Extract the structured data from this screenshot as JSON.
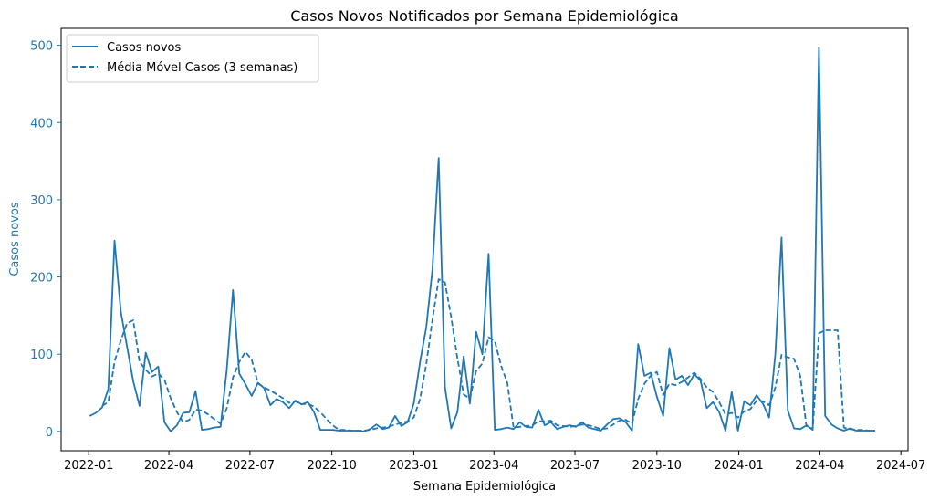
{
  "chart_data": {
    "type": "line",
    "title": "Casos Novos Notificados por Semana Epidemiológica",
    "xlabel": "Semana Epidemiológica",
    "ylabel": "Casos novos",
    "ylim": [
      -25,
      522
    ],
    "xlim": [
      "2021-12-01",
      "2024-07-09"
    ],
    "x_tick_labels": [
      "2022-01",
      "2022-04",
      "2022-07",
      "2022-10",
      "2023-01",
      "2023-04",
      "2023-07",
      "2023-10",
      "2024-01",
      "2024-04",
      "2024-07"
    ],
    "y_tick_labels": [
      "0",
      "100",
      "200",
      "300",
      "400",
      "500"
    ],
    "y_ticks": [
      0,
      100,
      200,
      300,
      400,
      500
    ],
    "y_axis_color": "#1f77b4",
    "legend_position": "top-left",
    "grid": false,
    "series": [
      {
        "name": "Casos novos",
        "style": "solid",
        "color": "#1f77b4",
        "points": [
          [
            "2022-01-02",
            20
          ],
          [
            "2022-01-09",
            24
          ],
          [
            "2022-01-16",
            31
          ],
          [
            "2022-01-23",
            55
          ],
          [
            "2022-01-30",
            247
          ],
          [
            "2022-02-06",
            155
          ],
          [
            "2022-02-13",
            110
          ],
          [
            "2022-02-20",
            65
          ],
          [
            "2022-02-27",
            33
          ],
          [
            "2022-03-06",
            102
          ],
          [
            "2022-03-13",
            77
          ],
          [
            "2022-03-20",
            84
          ],
          [
            "2022-03-27",
            12
          ],
          [
            "2022-04-03",
            0
          ],
          [
            "2022-04-10",
            8
          ],
          [
            "2022-04-17",
            24
          ],
          [
            "2022-04-24",
            25
          ],
          [
            "2022-05-01",
            52
          ],
          [
            "2022-05-08",
            2
          ],
          [
            "2022-05-15",
            3
          ],
          [
            "2022-05-22",
            5
          ],
          [
            "2022-05-29",
            6
          ],
          [
            "2022-06-05",
            80
          ],
          [
            "2022-06-12",
            183
          ],
          [
            "2022-06-19",
            75
          ],
          [
            "2022-06-26",
            61
          ],
          [
            "2022-07-03",
            46
          ],
          [
            "2022-07-10",
            63
          ],
          [
            "2022-07-17",
            56
          ],
          [
            "2022-07-24",
            34
          ],
          [
            "2022-07-31",
            42
          ],
          [
            "2022-08-07",
            38
          ],
          [
            "2022-08-14",
            30
          ],
          [
            "2022-08-21",
            40
          ],
          [
            "2022-08-28",
            35
          ],
          [
            "2022-09-04",
            38
          ],
          [
            "2022-09-11",
            25
          ],
          [
            "2022-09-18",
            2
          ],
          [
            "2022-09-25",
            2
          ],
          [
            "2022-10-02",
            2
          ],
          [
            "2022-10-09",
            1
          ],
          [
            "2022-10-16",
            1
          ],
          [
            "2022-10-23",
            1
          ],
          [
            "2022-10-30",
            1
          ],
          [
            "2022-11-06",
            0
          ],
          [
            "2022-11-13",
            3
          ],
          [
            "2022-11-20",
            9
          ],
          [
            "2022-11-27",
            3
          ],
          [
            "2022-12-04",
            5
          ],
          [
            "2022-12-11",
            20
          ],
          [
            "2022-12-18",
            7
          ],
          [
            "2022-12-25",
            12
          ],
          [
            "2023-01-01",
            36
          ],
          [
            "2023-01-08",
            90
          ],
          [
            "2023-01-15",
            135
          ],
          [
            "2023-01-22",
            210
          ],
          [
            "2023-01-29",
            354
          ],
          [
            "2023-02-05",
            57
          ],
          [
            "2023-02-12",
            4
          ],
          [
            "2023-02-19",
            25
          ],
          [
            "2023-02-26",
            97
          ],
          [
            "2023-03-05",
            36
          ],
          [
            "2023-03-12",
            129
          ],
          [
            "2023-03-19",
            100
          ],
          [
            "2023-03-26",
            230
          ],
          [
            "2023-04-02",
            2
          ],
          [
            "2023-04-09",
            3
          ],
          [
            "2023-04-16",
            5
          ],
          [
            "2023-04-23",
            3
          ],
          [
            "2023-04-30",
            12
          ],
          [
            "2023-05-07",
            6
          ],
          [
            "2023-05-14",
            5
          ],
          [
            "2023-05-21",
            28
          ],
          [
            "2023-05-28",
            8
          ],
          [
            "2023-06-04",
            12
          ],
          [
            "2023-06-11",
            3
          ],
          [
            "2023-06-18",
            6
          ],
          [
            "2023-06-25",
            8
          ],
          [
            "2023-07-02",
            6
          ],
          [
            "2023-07-09",
            12
          ],
          [
            "2023-07-16",
            5
          ],
          [
            "2023-07-23",
            3
          ],
          [
            "2023-07-30",
            1
          ],
          [
            "2023-08-06",
            9
          ],
          [
            "2023-08-13",
            16
          ],
          [
            "2023-08-20",
            17
          ],
          [
            "2023-08-27",
            12
          ],
          [
            "2023-09-03",
            1
          ],
          [
            "2023-09-10",
            113
          ],
          [
            "2023-09-17",
            72
          ],
          [
            "2023-09-24",
            76
          ],
          [
            "2023-10-01",
            45
          ],
          [
            "2023-10-08",
            20
          ],
          [
            "2023-10-15",
            108
          ],
          [
            "2023-10-22",
            67
          ],
          [
            "2023-10-29",
            72
          ],
          [
            "2023-11-05",
            60
          ],
          [
            "2023-11-12",
            74
          ],
          [
            "2023-11-19",
            66
          ],
          [
            "2023-11-26",
            30
          ],
          [
            "2023-12-03",
            38
          ],
          [
            "2023-12-10",
            25
          ],
          [
            "2023-12-17",
            1
          ],
          [
            "2023-12-24",
            51
          ],
          [
            "2023-12-31",
            1
          ],
          [
            "2024-01-07",
            39
          ],
          [
            "2024-01-14",
            34
          ],
          [
            "2024-01-21",
            47
          ],
          [
            "2024-01-28",
            36
          ],
          [
            "2024-02-04",
            18
          ],
          [
            "2024-02-11",
            100
          ],
          [
            "2024-02-18",
            251
          ],
          [
            "2024-02-25",
            27
          ],
          [
            "2024-03-03",
            4
          ],
          [
            "2024-03-10",
            3
          ],
          [
            "2024-03-17",
            8
          ],
          [
            "2024-03-24",
            2
          ],
          [
            "2024-03-31",
            497
          ],
          [
            "2024-04-07",
            20
          ],
          [
            "2024-04-14",
            9
          ],
          [
            "2024-04-21",
            4
          ],
          [
            "2024-04-28",
            1
          ],
          [
            "2024-05-05",
            4
          ],
          [
            "2024-05-12",
            1
          ],
          [
            "2024-05-19",
            1
          ],
          [
            "2024-05-26",
            1
          ],
          [
            "2024-06-02",
            1
          ]
        ]
      },
      {
        "name": "Média Móvel Casos (3 semanas)",
        "style": "dashed",
        "color": "#1f77b4",
        "points": [
          [
            "2022-01-16",
            33
          ],
          [
            "2022-01-23",
            38
          ],
          [
            "2022-01-30",
            90
          ],
          [
            "2022-02-06",
            118
          ],
          [
            "2022-02-13",
            140
          ],
          [
            "2022-02-20",
            144
          ],
          [
            "2022-02-27",
            90
          ],
          [
            "2022-03-06",
            80
          ],
          [
            "2022-03-13",
            71
          ],
          [
            "2022-03-20",
            75
          ],
          [
            "2022-03-27",
            67
          ],
          [
            "2022-04-03",
            43
          ],
          [
            "2022-04-10",
            25
          ],
          [
            "2022-04-17",
            12
          ],
          [
            "2022-04-24",
            15
          ],
          [
            "2022-05-01",
            28
          ],
          [
            "2022-05-08",
            27
          ],
          [
            "2022-05-15",
            22
          ],
          [
            "2022-05-22",
            16
          ],
          [
            "2022-05-29",
            10
          ],
          [
            "2022-06-05",
            30
          ],
          [
            "2022-06-12",
            70
          ],
          [
            "2022-06-19",
            90
          ],
          [
            "2022-06-26",
            103
          ],
          [
            "2022-07-03",
            93
          ],
          [
            "2022-07-10",
            62
          ],
          [
            "2022-07-17",
            57
          ],
          [
            "2022-07-24",
            53
          ],
          [
            "2022-07-31",
            48
          ],
          [
            "2022-08-07",
            43
          ],
          [
            "2022-08-14",
            37
          ],
          [
            "2022-08-21",
            39
          ],
          [
            "2022-08-28",
            35
          ],
          [
            "2022-09-04",
            36
          ],
          [
            "2022-09-11",
            32
          ],
          [
            "2022-09-18",
            25
          ],
          [
            "2022-09-25",
            16
          ],
          [
            "2022-10-02",
            8
          ],
          [
            "2022-10-09",
            2
          ],
          [
            "2022-10-16",
            2
          ],
          [
            "2022-10-23",
            1
          ],
          [
            "2022-10-30",
            1
          ],
          [
            "2022-11-06",
            1
          ],
          [
            "2022-11-13",
            2
          ],
          [
            "2022-11-20",
            4
          ],
          [
            "2022-11-27",
            5
          ],
          [
            "2022-12-04",
            6
          ],
          [
            "2022-12-11",
            9
          ],
          [
            "2022-12-18",
            11
          ],
          [
            "2022-12-25",
            13
          ],
          [
            "2023-01-01",
            18
          ],
          [
            "2023-01-08",
            42
          ],
          [
            "2023-01-15",
            87
          ],
          [
            "2023-01-22",
            145
          ],
          [
            "2023-01-29",
            197
          ],
          [
            "2023-02-05",
            193
          ],
          [
            "2023-02-12",
            148
          ],
          [
            "2023-02-19",
            95
          ],
          [
            "2023-02-26",
            48
          ],
          [
            "2023-03-05",
            42
          ],
          [
            "2023-03-12",
            78
          ],
          [
            "2023-03-19",
            88
          ],
          [
            "2023-03-26",
            122
          ],
          [
            "2023-04-02",
            117
          ],
          [
            "2023-04-09",
            85
          ],
          [
            "2023-04-16",
            63
          ],
          [
            "2023-04-23",
            5
          ],
          [
            "2023-04-30",
            6
          ],
          [
            "2023-05-07",
            7
          ],
          [
            "2023-05-14",
            8
          ],
          [
            "2023-05-21",
            13
          ],
          [
            "2023-05-28",
            13
          ],
          [
            "2023-06-04",
            14
          ],
          [
            "2023-06-11",
            8
          ],
          [
            "2023-06-18",
            7
          ],
          [
            "2023-06-25",
            6
          ],
          [
            "2023-07-02",
            7
          ],
          [
            "2023-07-09",
            9
          ],
          [
            "2023-07-16",
            8
          ],
          [
            "2023-07-23",
            6
          ],
          [
            "2023-07-30",
            3
          ],
          [
            "2023-08-06",
            4
          ],
          [
            "2023-08-13",
            9
          ],
          [
            "2023-08-20",
            14
          ],
          [
            "2023-08-27",
            15
          ],
          [
            "2023-09-03",
            10
          ],
          [
            "2023-09-10",
            42
          ],
          [
            "2023-09-17",
            62
          ],
          [
            "2023-09-24",
            72
          ],
          [
            "2023-10-01",
            77
          ],
          [
            "2023-10-08",
            47
          ],
          [
            "2023-10-15",
            62
          ],
          [
            "2023-10-22",
            60
          ],
          [
            "2023-10-29",
            64
          ],
          [
            "2023-11-05",
            70
          ],
          [
            "2023-11-12",
            76
          ],
          [
            "2023-11-19",
            68
          ],
          [
            "2023-11-26",
            57
          ],
          [
            "2023-12-03",
            51
          ],
          [
            "2023-12-10",
            38
          ],
          [
            "2023-12-17",
            22
          ],
          [
            "2023-12-24",
            24
          ],
          [
            "2023-12-31",
            18
          ],
          [
            "2024-01-07",
            26
          ],
          [
            "2024-01-14",
            29
          ],
          [
            "2024-01-21",
            40
          ],
          [
            "2024-01-28",
            39
          ],
          [
            "2024-02-04",
            34
          ],
          [
            "2024-02-11",
            57
          ],
          [
            "2024-02-18",
            99
          ],
          [
            "2024-02-25",
            96
          ],
          [
            "2024-03-03",
            94
          ],
          [
            "2024-03-10",
            72
          ],
          [
            "2024-03-17",
            5
          ],
          [
            "2024-03-24",
            4
          ],
          [
            "2024-03-31",
            127
          ],
          [
            "2024-04-07",
            131
          ],
          [
            "2024-04-14",
            131
          ],
          [
            "2024-04-21",
            131
          ],
          [
            "2024-04-28",
            5
          ],
          [
            "2024-05-05",
            3
          ],
          [
            "2024-05-12",
            2
          ],
          [
            "2024-05-19",
            2
          ],
          [
            "2024-05-26",
            1
          ],
          [
            "2024-06-02",
            1
          ]
        ]
      }
    ]
  }
}
